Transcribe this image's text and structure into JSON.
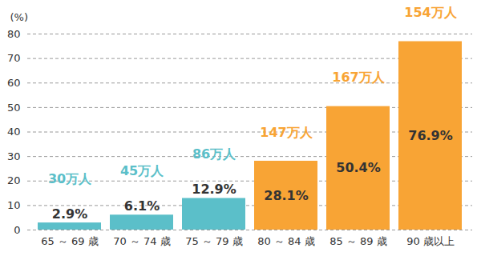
{
  "chart_data": {
    "type": "bar",
    "y_label": "(%)",
    "categories": [
      "65 ～ 69 歳",
      "70 ～ 74 歳",
      "75 ～ 79 歳",
      "80 ～ 84 歳",
      "85 ～ 89 歳",
      "90 歳以上"
    ],
    "values": [
      2.9,
      6.1,
      12.9,
      28.1,
      50.4,
      76.9
    ],
    "value_labels": [
      "2.9%",
      "6.1%",
      "12.9%",
      "28.1%",
      "50.4%",
      "76.9%"
    ],
    "annotations": [
      "30万人",
      "45万人",
      "86万人",
      "147万人",
      "167万人",
      "154万人"
    ],
    "colors": [
      "#5bbfc9",
      "#5bbfc9",
      "#5bbfc9",
      "#f8a435",
      "#f8a435",
      "#f8a435"
    ],
    "ylim": [
      0,
      80
    ],
    "yticks": [
      0,
      10,
      20,
      30,
      40,
      50,
      60,
      70,
      80
    ],
    "grid": true,
    "data_labels": true
  }
}
